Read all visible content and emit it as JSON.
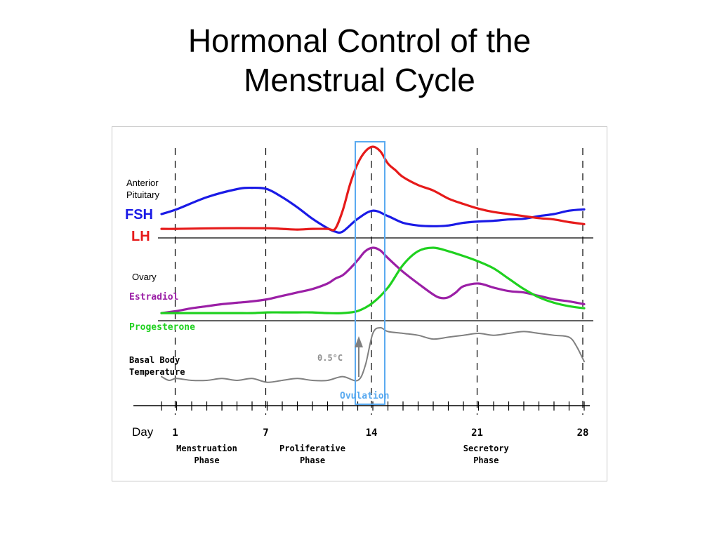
{
  "slide": {
    "title_line1": "Hormonal Control of the",
    "title_line2": "Menstrual Cycle"
  },
  "colors": {
    "fsh": "#1a1ae6",
    "lh": "#e61a1a",
    "estradiol": "#9b1fa6",
    "progesterone": "#1fd11f",
    "temperature": "#808080",
    "ovulation_box": "#5aaaf0",
    "axis": "#000000"
  },
  "chart_data": {
    "type": "line",
    "x_axis_label": "Day",
    "day_range": [
      0,
      28
    ],
    "day_ticks": [
      1,
      7,
      14,
      21,
      28
    ],
    "day_tick_labels": [
      "1",
      "7",
      "14",
      "21",
      "28"
    ],
    "phases": [
      {
        "line1": "Menstruation",
        "line2": "Phase",
        "center_day": 3.0
      },
      {
        "line1": "Proliferative",
        "line2": "Phase",
        "center_day": 10.0
      },
      {
        "line1": "Secretory",
        "line2": "Phase",
        "center_day": 21.5
      }
    ],
    "panels": [
      {
        "group_label_line1": "Anterior",
        "group_label_line2": "Pituitary",
        "series": [
          {
            "name": "FSH",
            "color": "#1a1ae6",
            "x": [
              0,
              1,
              3,
              5,
              6,
              7,
              8,
              9,
              10,
              11,
              11.5,
              12,
              13,
              14,
              15,
              16,
              17,
              18,
              19,
              20,
              21,
              22,
              23,
              24,
              25,
              26,
              27,
              28
            ],
            "y": [
              25,
              32,
              50,
              62,
              64,
              62,
              50,
              35,
              18,
              4,
              -1,
              -1,
              18,
              30,
              22,
              12,
              8,
              7,
              8,
              12,
              14,
              15,
              17,
              18,
              22,
              25,
              30,
              32
            ]
          },
          {
            "name": "LH",
            "color": "#e61a1a",
            "x": [
              0,
              1,
              4,
              7,
              8,
              9,
              10,
              11,
              11.5,
              12,
              12.5,
              13,
              13.5,
              14,
              14.5,
              15,
              15.5,
              16,
              17,
              18,
              19,
              20,
              21,
              22,
              23,
              24,
              25,
              26,
              27,
              28
            ],
            "y": [
              3,
              3,
              4,
              4,
              3,
              2,
              3,
              3,
              3,
              30,
              70,
              100,
              118,
              125,
              118,
              100,
              90,
              80,
              68,
              60,
              48,
              40,
              33,
              28,
              25,
              22,
              19,
              17,
              13,
              10
            ]
          }
        ]
      },
      {
        "group_label_line1": "Ovary",
        "group_label_line2": "",
        "series": [
          {
            "name": "Estradiol",
            "color": "#9b1fa6",
            "x": [
              0,
              1,
              2,
              3,
              4,
              5,
              6,
              7,
              8,
              9,
              10,
              11,
              11.5,
              12,
              12.5,
              13,
              13.5,
              14,
              14.5,
              15,
              16,
              17,
              18,
              18.5,
              19,
              19.5,
              20,
              21,
              22,
              23,
              24,
              25,
              26,
              27,
              28
            ],
            "y": [
              5,
              8,
              12,
              15,
              18,
              20,
              22,
              25,
              30,
              35,
              40,
              48,
              55,
              60,
              70,
              82,
              95,
              100,
              96,
              85,
              65,
              48,
              32,
              27,
              28,
              35,
              44,
              48,
              42,
              37,
              35,
              30,
              25,
              22,
              18
            ]
          },
          {
            "name": "Progesterone",
            "color": "#1fd11f",
            "x": [
              0,
              1,
              2,
              3,
              4,
              5,
              6,
              7,
              8,
              9,
              10,
              11,
              12,
              13,
              14,
              15,
              16,
              17,
              18,
              19,
              20,
              21,
              22,
              23,
              24,
              25,
              26,
              27,
              28
            ],
            "y": [
              5,
              5,
              5,
              5,
              5,
              5,
              5,
              6,
              6,
              6,
              6,
              5,
              5,
              8,
              20,
              42,
              75,
              95,
              100,
              95,
              88,
              80,
              70,
              55,
              40,
              28,
              20,
              15,
              12
            ]
          }
        ]
      },
      {
        "group_label_line1": "Basal Body",
        "group_label_line2": "Temperature",
        "series": [
          {
            "name": "Basal Body Temperature",
            "color": "#808080",
            "x": [
              0,
              0.5,
              1,
              2,
              3,
              4,
              5,
              6,
              7,
              8,
              9,
              10,
              11,
              12,
              13,
              13.5,
              14,
              14.5,
              15,
              16,
              17,
              18,
              19,
              20,
              21,
              22,
              23,
              24,
              25,
              26,
              27,
              27.5,
              28
            ],
            "y": [
              2,
              0,
              1,
              0,
              0,
              1,
              0,
              1,
              -1,
              0,
              1,
              0,
              0,
              2,
              0,
              8,
              25,
              28,
              26,
              25,
              24,
              22,
              23,
              24,
              25,
              24,
              25,
              26,
              25,
              24,
              23,
              18,
              10
            ]
          }
        ]
      }
    ],
    "annotations": {
      "ovulation": "Ovulation",
      "temp_rise": "0.5°C"
    }
  }
}
